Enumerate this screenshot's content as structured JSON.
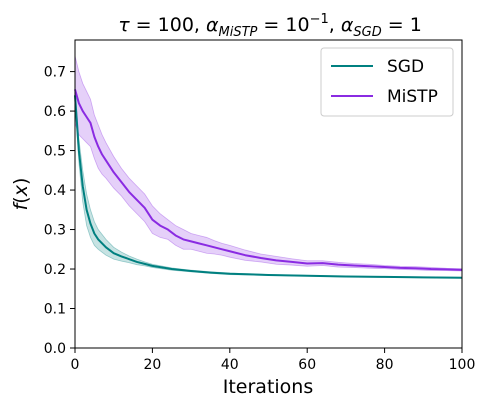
{
  "chart_data": {
    "type": "line",
    "title_parts": {
      "tau": "τ",
      "tau_val": " = 100, ",
      "alpha1": "α",
      "alpha1_sub": "MiSTP",
      "alpha1_eq": " = 10",
      "alpha1_exp": "−1",
      "sep": ", ",
      "alpha2": "α",
      "alpha2_sub": "SGD",
      "alpha2_eq": " = 1"
    },
    "xlabel": "Iterations",
    "ylabel_parts": {
      "f": "f",
      "open": "(",
      "x": "x",
      "close": ")"
    },
    "xlim": [
      0,
      100
    ],
    "ylim": [
      0,
      0.78
    ],
    "xticks": [
      0,
      20,
      40,
      60,
      80,
      100
    ],
    "yticks": [
      0.0,
      0.1,
      0.2,
      0.3,
      0.4,
      0.5,
      0.6,
      0.7
    ],
    "xtick_labels": [
      "0",
      "20",
      "40",
      "60",
      "80",
      "100"
    ],
    "ytick_labels": [
      "0.0",
      "0.1",
      "0.2",
      "0.3",
      "0.4",
      "0.5",
      "0.6",
      "0.7"
    ],
    "grid": false,
    "legend": "top-right",
    "series": [
      {
        "name": "SGD",
        "color": "#008080",
        "x": [
          0,
          1,
          2,
          3,
          4,
          5,
          6,
          8,
          10,
          12,
          14,
          16,
          18,
          20,
          25,
          30,
          35,
          40,
          50,
          60,
          70,
          80,
          90,
          100
        ],
        "y": [
          0.64,
          0.5,
          0.41,
          0.35,
          0.315,
          0.29,
          0.275,
          0.255,
          0.24,
          0.232,
          0.225,
          0.218,
          0.213,
          0.208,
          0.2,
          0.195,
          0.191,
          0.188,
          0.185,
          0.183,
          0.181,
          0.18,
          0.179,
          0.178
        ],
        "upper": [
          0.66,
          0.53,
          0.45,
          0.39,
          0.35,
          0.32,
          0.3,
          0.275,
          0.255,
          0.243,
          0.233,
          0.225,
          0.218,
          0.212,
          0.203,
          0.197,
          0.193,
          0.19,
          0.186,
          0.184,
          0.182,
          0.181,
          0.18,
          0.179
        ],
        "lower": [
          0.62,
          0.47,
          0.37,
          0.31,
          0.28,
          0.26,
          0.25,
          0.235,
          0.225,
          0.22,
          0.216,
          0.211,
          0.208,
          0.204,
          0.197,
          0.193,
          0.189,
          0.186,
          0.184,
          0.182,
          0.18,
          0.179,
          0.178,
          0.177
        ]
      },
      {
        "name": "MiSTP",
        "color": "#8a2be2",
        "x": [
          0,
          1,
          2,
          3,
          4,
          5,
          6,
          7,
          8,
          10,
          12,
          14,
          16,
          18,
          20,
          22,
          24,
          26,
          28,
          30,
          32,
          34,
          36,
          38,
          40,
          44,
          48,
          52,
          56,
          60,
          64,
          68,
          72,
          76,
          80,
          84,
          88,
          92,
          96,
          100
        ],
        "y": [
          0.655,
          0.62,
          0.6,
          0.585,
          0.57,
          0.535,
          0.51,
          0.49,
          0.475,
          0.445,
          0.42,
          0.395,
          0.375,
          0.355,
          0.325,
          0.31,
          0.3,
          0.285,
          0.275,
          0.27,
          0.265,
          0.26,
          0.255,
          0.25,
          0.245,
          0.235,
          0.228,
          0.222,
          0.218,
          0.214,
          0.215,
          0.211,
          0.209,
          0.207,
          0.205,
          0.203,
          0.202,
          0.2,
          0.199,
          0.198
        ],
        "upper": [
          0.74,
          0.7,
          0.67,
          0.65,
          0.63,
          0.59,
          0.565,
          0.54,
          0.52,
          0.485,
          0.455,
          0.43,
          0.41,
          0.39,
          0.36,
          0.34,
          0.325,
          0.31,
          0.3,
          0.29,
          0.285,
          0.28,
          0.272,
          0.265,
          0.26,
          0.248,
          0.238,
          0.232,
          0.226,
          0.221,
          0.221,
          0.217,
          0.214,
          0.212,
          0.209,
          0.207,
          0.206,
          0.204,
          0.202,
          0.201
        ],
        "lower": [
          0.57,
          0.54,
          0.53,
          0.52,
          0.51,
          0.48,
          0.455,
          0.44,
          0.43,
          0.405,
          0.385,
          0.36,
          0.34,
          0.32,
          0.29,
          0.28,
          0.275,
          0.26,
          0.25,
          0.25,
          0.245,
          0.24,
          0.238,
          0.235,
          0.23,
          0.222,
          0.218,
          0.212,
          0.21,
          0.207,
          0.209,
          0.205,
          0.204,
          0.202,
          0.201,
          0.199,
          0.198,
          0.196,
          0.196,
          0.195
        ]
      }
    ]
  }
}
